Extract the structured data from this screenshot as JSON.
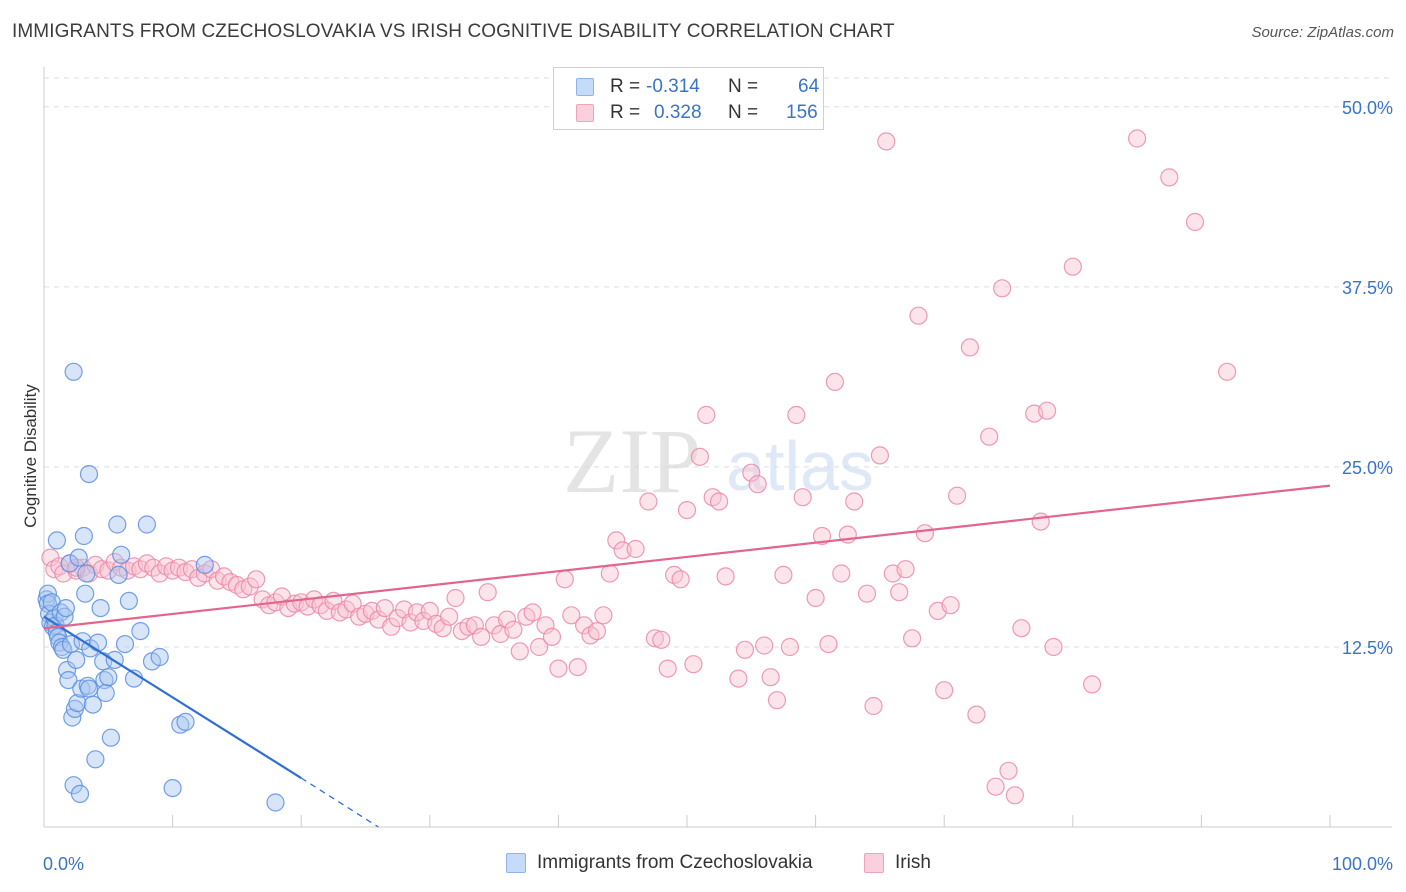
{
  "title": "IMMIGRANTS FROM CZECHOSLOVAKIA VS IRISH COGNITIVE DISABILITY CORRELATION CHART",
  "source": "Source: ZipAtlas.com",
  "watermark": {
    "zip": "ZIP",
    "atlas": "atlas"
  },
  "legend_stats": [
    {
      "r_label": "R =",
      "r_value": "-0.314",
      "n_label": "N =",
      "n_value": "64",
      "color": "#8fb4ec",
      "fill": "#c6dbf7"
    },
    {
      "r_label": "R =",
      "r_value": "0.328",
      "n_label": "N =",
      "n_value": "156",
      "color": "#f0a3bc",
      "fill": "#fbd0dd"
    }
  ],
  "chart_data": {
    "type": "scatter",
    "title": "IMMIGRANTS FROM CZECHOSLOVAKIA VS IRISH COGNITIVE DISABILITY CORRELATION CHART",
    "xlabel": "",
    "ylabel": "Cognitive Disability",
    "xlim": [
      0,
      100
    ],
    "ylim": [
      0,
      52
    ],
    "x_tick_labels": [
      "0.0%",
      "100.0%"
    ],
    "y_ticks": [
      12.5,
      25.0,
      37.5,
      50.0
    ],
    "y_tick_labels": [
      "12.5%",
      "25.0%",
      "37.5%",
      "50.0%"
    ],
    "grid": true,
    "legend_position": "bottom",
    "series": [
      {
        "name": "Immigrants from Czechoslovakia",
        "color": "#5b8fe0",
        "fill": "#a9c6f0",
        "line_color": "#2f6fd0",
        "trend": {
          "x0": 0,
          "y0": 14.6,
          "x1": 20,
          "y1": 3.4,
          "dash_to_x": 26,
          "dash_to_y": 0
        },
        "points": [
          [
            0.2,
            15.8
          ],
          [
            0.3,
            16.2
          ],
          [
            0.3,
            15.5
          ],
          [
            0.4,
            14.8
          ],
          [
            0.5,
            14.2
          ],
          [
            0.6,
            15.6
          ],
          [
            0.7,
            13.9
          ],
          [
            0.8,
            14.5
          ],
          [
            0.9,
            14.0
          ],
          [
            1.0,
            13.5
          ],
          [
            1.1,
            13.2
          ],
          [
            1.2,
            12.8
          ],
          [
            1.3,
            14.9
          ],
          [
            1.4,
            12.5
          ],
          [
            1.5,
            12.3
          ],
          [
            1.6,
            14.6
          ],
          [
            1.7,
            15.2
          ],
          [
            1.8,
            10.9
          ],
          [
            1.9,
            10.2
          ],
          [
            2.0,
            18.3
          ],
          [
            2.1,
            12.7
          ],
          [
            2.2,
            7.6
          ],
          [
            2.3,
            2.9
          ],
          [
            2.4,
            8.2
          ],
          [
            2.5,
            11.6
          ],
          [
            2.6,
            8.6
          ],
          [
            2.7,
            18.7
          ],
          [
            2.8,
            2.3
          ],
          [
            2.9,
            9.6
          ],
          [
            3.0,
            12.9
          ],
          [
            3.1,
            20.2
          ],
          [
            3.2,
            16.2
          ],
          [
            3.3,
            17.6
          ],
          [
            3.4,
            9.8
          ],
          [
            3.5,
            9.6
          ],
          [
            3.6,
            12.4
          ],
          [
            3.8,
            8.5
          ],
          [
            4.0,
            4.7
          ],
          [
            4.2,
            12.8
          ],
          [
            4.4,
            15.2
          ],
          [
            4.6,
            11.5
          ],
          [
            4.7,
            10.2
          ],
          [
            4.8,
            9.3
          ],
          [
            5.0,
            10.4
          ],
          [
            5.2,
            6.2
          ],
          [
            5.5,
            11.6
          ],
          [
            5.8,
            17.5
          ],
          [
            6.0,
            18.9
          ],
          [
            6.3,
            12.7
          ],
          [
            6.6,
            15.7
          ],
          [
            7.0,
            10.3
          ],
          [
            7.5,
            13.6
          ],
          [
            8.0,
            21.0
          ],
          [
            8.4,
            11.5
          ],
          [
            9.0,
            11.8
          ],
          [
            10.0,
            2.7
          ],
          [
            10.6,
            7.1
          ],
          [
            11.0,
            7.3
          ],
          [
            12.5,
            18.2
          ],
          [
            18.0,
            1.7
          ],
          [
            2.3,
            31.6
          ],
          [
            3.5,
            24.5
          ],
          [
            5.7,
            21.0
          ],
          [
            1.0,
            19.9
          ]
        ]
      },
      {
        "name": "Irish",
        "color": "#eb88a9",
        "fill": "#f8c3d3",
        "line_color": "#e3658e",
        "trend": {
          "x0": 0,
          "y0": 13.8,
          "x1": 100,
          "y1": 23.7
        },
        "points": [
          [
            0.5,
            18.7
          ],
          [
            0.8,
            17.9
          ],
          [
            1.2,
            18.1
          ],
          [
            1.5,
            17.6
          ],
          [
            2.0,
            18.3
          ],
          [
            2.5,
            17.8
          ],
          [
            3.0,
            18.0
          ],
          [
            3.5,
            17.6
          ],
          [
            4.0,
            18.2
          ],
          [
            4.5,
            17.9
          ],
          [
            5.0,
            17.8
          ],
          [
            5.5,
            18.4
          ],
          [
            6.0,
            18.0
          ],
          [
            6.5,
            17.8
          ],
          [
            7.0,
            18.1
          ],
          [
            7.5,
            17.9
          ],
          [
            8.0,
            18.3
          ],
          [
            8.5,
            18.0
          ],
          [
            9.0,
            17.6
          ],
          [
            9.5,
            18.1
          ],
          [
            10.0,
            17.8
          ],
          [
            10.5,
            18.0
          ],
          [
            11.0,
            17.7
          ],
          [
            11.5,
            17.9
          ],
          [
            12.0,
            17.3
          ],
          [
            12.5,
            17.6
          ],
          [
            13.0,
            17.9
          ],
          [
            13.5,
            17.1
          ],
          [
            14.0,
            17.4
          ],
          [
            14.5,
            17.0
          ],
          [
            15.0,
            16.8
          ],
          [
            15.5,
            16.5
          ],
          [
            16.0,
            16.7
          ],
          [
            16.5,
            17.2
          ],
          [
            17.0,
            15.8
          ],
          [
            17.5,
            15.4
          ],
          [
            18.0,
            15.6
          ],
          [
            18.5,
            16.0
          ],
          [
            19.0,
            15.2
          ],
          [
            19.5,
            15.5
          ],
          [
            20.0,
            15.6
          ],
          [
            20.5,
            15.3
          ],
          [
            21.0,
            15.8
          ],
          [
            21.5,
            15.4
          ],
          [
            22.0,
            15.0
          ],
          [
            22.5,
            15.7
          ],
          [
            23.0,
            14.9
          ],
          [
            23.5,
            15.1
          ],
          [
            24.0,
            15.5
          ],
          [
            24.5,
            14.6
          ],
          [
            25.0,
            14.8
          ],
          [
            25.5,
            15.0
          ],
          [
            26.0,
            14.4
          ],
          [
            26.5,
            15.2
          ],
          [
            27.0,
            13.9
          ],
          [
            27.5,
            14.5
          ],
          [
            28.0,
            15.1
          ],
          [
            28.5,
            14.2
          ],
          [
            29.0,
            14.9
          ],
          [
            29.5,
            14.3
          ],
          [
            30.0,
            15.0
          ],
          [
            30.5,
            14.1
          ],
          [
            31.0,
            13.8
          ],
          [
            31.5,
            14.6
          ],
          [
            32.0,
            15.9
          ],
          [
            32.5,
            13.6
          ],
          [
            33.0,
            13.9
          ],
          [
            33.5,
            14.0
          ],
          [
            34.0,
            13.2
          ],
          [
            34.5,
            16.3
          ],
          [
            35.0,
            14.0
          ],
          [
            35.5,
            13.4
          ],
          [
            36.0,
            14.4
          ],
          [
            36.5,
            13.7
          ],
          [
            37.0,
            12.2
          ],
          [
            37.5,
            14.6
          ],
          [
            38.0,
            14.9
          ],
          [
            38.5,
            12.5
          ],
          [
            39.0,
            14.0
          ],
          [
            39.5,
            13.2
          ],
          [
            40.0,
            11.0
          ],
          [
            40.5,
            17.2
          ],
          [
            41.0,
            14.7
          ],
          [
            41.5,
            11.1
          ],
          [
            42.0,
            14.0
          ],
          [
            42.5,
            13.3
          ],
          [
            43.0,
            13.6
          ],
          [
            43.5,
            14.7
          ],
          [
            44.0,
            17.6
          ],
          [
            44.5,
            19.9
          ],
          [
            45.0,
            19.2
          ],
          [
            46.0,
            19.3
          ],
          [
            47.0,
            22.6
          ],
          [
            47.5,
            13.1
          ],
          [
            48.0,
            13.0
          ],
          [
            48.5,
            11.0
          ],
          [
            49.0,
            17.5
          ],
          [
            49.5,
            17.2
          ],
          [
            50.0,
            22.0
          ],
          [
            50.5,
            11.3
          ],
          [
            51.0,
            25.7
          ],
          [
            51.5,
            28.6
          ],
          [
            52.0,
            22.9
          ],
          [
            52.5,
            22.6
          ],
          [
            53.0,
            17.4
          ],
          [
            54.0,
            10.3
          ],
          [
            54.5,
            12.3
          ],
          [
            55.0,
            24.6
          ],
          [
            55.5,
            23.8
          ],
          [
            56.0,
            12.6
          ],
          [
            56.5,
            10.4
          ],
          [
            57.0,
            8.8
          ],
          [
            57.5,
            17.5
          ],
          [
            58.0,
            12.5
          ],
          [
            58.5,
            28.6
          ],
          [
            59.0,
            22.9
          ],
          [
            60.0,
            15.9
          ],
          [
            60.5,
            20.2
          ],
          [
            61.0,
            12.7
          ],
          [
            61.5,
            30.9
          ],
          [
            62.0,
            17.6
          ],
          [
            62.5,
            20.3
          ],
          [
            63.0,
            22.6
          ],
          [
            64.0,
            16.2
          ],
          [
            64.5,
            8.4
          ],
          [
            65.0,
            25.8
          ],
          [
            66.0,
            17.6
          ],
          [
            66.5,
            16.3
          ],
          [
            67.0,
            17.9
          ],
          [
            67.5,
            13.1
          ],
          [
            68.0,
            35.5
          ],
          [
            68.5,
            20.4
          ],
          [
            69.5,
            15.0
          ],
          [
            70.0,
            9.5
          ],
          [
            70.5,
            15.4
          ],
          [
            71.0,
            23.0
          ],
          [
            72.0,
            33.3
          ],
          [
            72.5,
            7.8
          ],
          [
            73.5,
            27.1
          ],
          [
            74.0,
            2.8
          ],
          [
            74.5,
            37.4
          ],
          [
            75.0,
            3.9
          ],
          [
            75.5,
            2.2
          ],
          [
            76.0,
            13.8
          ],
          [
            77.0,
            28.7
          ],
          [
            77.5,
            21.2
          ],
          [
            78.0,
            28.9
          ],
          [
            78.5,
            12.5
          ],
          [
            80.0,
            38.9
          ],
          [
            81.5,
            9.9
          ],
          [
            85.0,
            47.8
          ],
          [
            87.5,
            45.1
          ],
          [
            89.5,
            42.0
          ],
          [
            92.0,
            31.6
          ],
          [
            65.5,
            47.6
          ],
          [
            2.5,
            18.0
          ]
        ]
      }
    ]
  }
}
